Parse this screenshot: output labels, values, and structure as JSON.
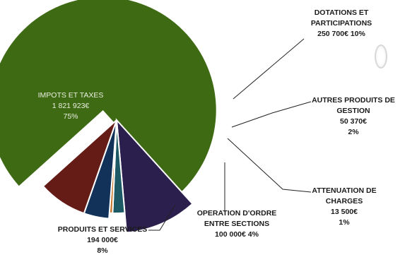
{
  "chart_data": {
    "type": "pie",
    "title": "",
    "slices": [
      {
        "label": "IMPOTS ET TAXES",
        "value": 1821923,
        "value_text": "1 821 923€",
        "percent_text": "75%",
        "color": "#3f6a14"
      },
      {
        "label": "DOTATIONS ET PARTICIPATIONS",
        "value": 250700,
        "value_text": "250 700€",
        "percent_text": "10%",
        "color": "#2b1f4e"
      },
      {
        "label": "AUTRES PRODUITS DE GESTION",
        "value": 50370,
        "value_text": "50 370€",
        "percent_text": "2%",
        "color": "#1e5a66"
      },
      {
        "label": "ATTENUATION DE CHARGES",
        "value": 13500,
        "value_text": "13 500€",
        "percent_text": "1%",
        "color": "#c8762a"
      },
      {
        "label": "OPERATION D'ORDRE ENTRE SECTIONS",
        "value": 100000,
        "value_text": "100 000€",
        "percent_text": "4%",
        "color": "#12325a"
      },
      {
        "label": "PRODUITS ET SERVICES",
        "value": 194000,
        "value_text": "194 000€",
        "percent_text": "8%",
        "color": "#651c17"
      }
    ]
  },
  "labels": {
    "impots": {
      "line1": "IMPOTS ET TAXES",
      "line2": "1 821 923€",
      "line3": "75%"
    },
    "dotations": {
      "line1": "DOTATIONS ET",
      "line2": "PARTICIPATIONS",
      "line3": "250 700€ 10%"
    },
    "autres": {
      "line1": "AUTRES PRODUITS DE",
      "line2": "GESTION",
      "line3": "50 370€",
      "line4": "2%"
    },
    "attenuation": {
      "line1": "ATTENUATION DE",
      "line2": "CHARGES",
      "line3": "13 500€",
      "line4": "1%"
    },
    "operation": {
      "line1": "OPERATION D'ORDRE",
      "line2": "ENTRE SECTIONS",
      "line3": "100 000€ 4%"
    },
    "produits": {
      "line1": "PRODUITS ET SERVICES",
      "line2": "194 000€",
      "line3": "8%"
    }
  }
}
